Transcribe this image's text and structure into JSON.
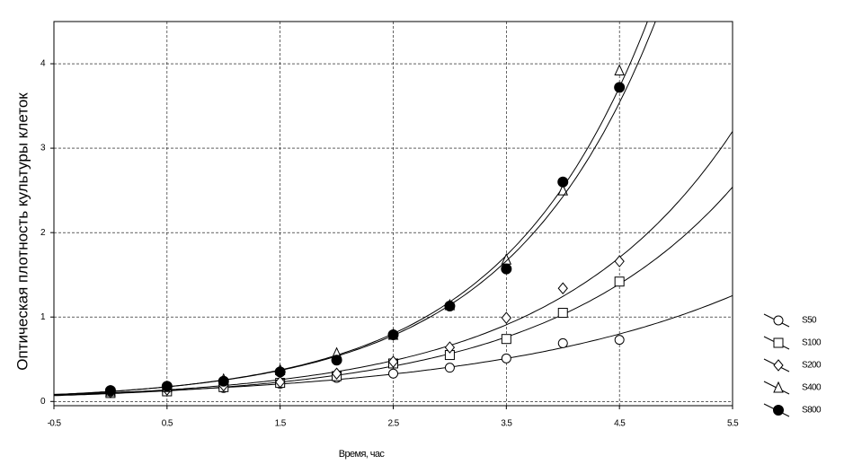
{
  "chart_data": {
    "type": "scatter",
    "x_label": "Время, час",
    "y_label": "Оптическая плотность культуры клеток",
    "x": [
      0,
      0.5,
      1,
      1.5,
      2,
      2.5,
      3,
      3.5,
      4,
      4.5
    ],
    "series": [
      {
        "name": "S50",
        "color": "#000000",
        "marker": "circle",
        "values": [
          0.11,
          0.12,
          0.16,
          0.21,
          0.28,
          0.33,
          0.4,
          0.51,
          0.69,
          0.73
        ]
      },
      {
        "name": "S100",
        "color": "#000000",
        "marker": "square",
        "values": [
          0.1,
          0.12,
          0.17,
          0.22,
          0.3,
          0.45,
          0.55,
          0.74,
          1.05,
          1.42
        ]
      },
      {
        "name": "S200",
        "color": "#000000",
        "marker": "diamond",
        "values": [
          0.11,
          0.14,
          0.19,
          0.23,
          0.33,
          0.47,
          0.64,
          0.99,
          1.34,
          1.66
        ]
      },
      {
        "name": "S400",
        "color": "#000000",
        "marker": "triangle",
        "values": [
          0.12,
          0.17,
          0.26,
          0.37,
          0.57,
          0.79,
          1.14,
          1.68,
          2.5,
          3.92
        ]
      },
      {
        "name": "S800",
        "color": "#000000",
        "marker": "filled-circle",
        "values": [
          0.13,
          0.18,
          0.24,
          0.35,
          0.49,
          0.79,
          1.13,
          1.57,
          2.6,
          3.72
        ]
      }
    ],
    "xlim": [
      -0.5,
      5.5
    ],
    "xticks": [
      -0.5,
      0.5,
      1.5,
      2.5,
      3.5,
      4.5,
      5.5
    ],
    "ylim": [
      -0.05,
      4.5
    ],
    "yticks": [
      0,
      1,
      2,
      3,
      4
    ],
    "grid": true,
    "fit": "exponential",
    "legend": "right"
  }
}
